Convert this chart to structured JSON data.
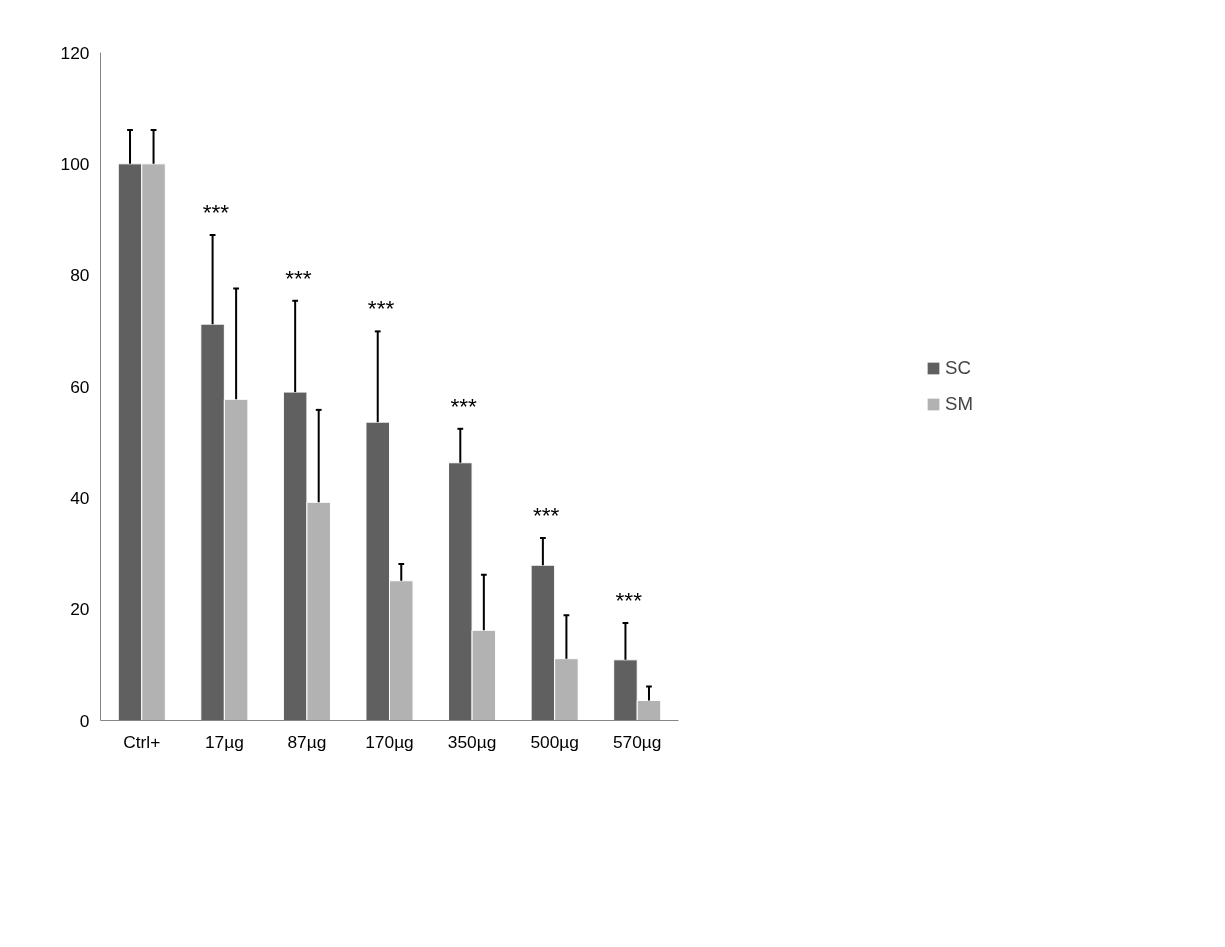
{
  "chart_data": {
    "type": "bar",
    "categories": [
      "Ctrl+",
      "17µg",
      "87µg",
      "170µg",
      "350µg",
      "500µg",
      "570µg"
    ],
    "series": [
      {
        "name": "SC",
        "color": "#606060",
        "values": [
          100,
          71.2,
          59,
          53.6,
          46.3,
          27.9,
          10.9
        ],
        "errors": [
          [
            100,
            106.1
          ],
          [
            71.2,
            87.2
          ],
          [
            59,
            75.4
          ],
          [
            53.6,
            69.9
          ],
          [
            46.3,
            52.4
          ],
          [
            27.9,
            32.8
          ],
          [
            10.9,
            17.5
          ]
        ]
      },
      {
        "name": "SM",
        "color": "#b2b2b2",
        "values": [
          100,
          57.7,
          39.2,
          25.1,
          16.2,
          11.1,
          3.6
        ],
        "errors": [
          [
            100,
            106.1
          ],
          [
            57.7,
            77.6
          ],
          [
            39.2,
            55.8
          ],
          [
            25.1,
            28.1
          ],
          [
            16.2,
            26.2
          ],
          [
            11.1,
            18.9
          ],
          [
            3.6,
            6.1
          ]
        ]
      }
    ],
    "ylim": [
      0,
      120
    ],
    "yticks": [
      0,
      20,
      40,
      60,
      80,
      100,
      120
    ],
    "annotations": [
      "***",
      "***",
      "***",
      "***",
      "***",
      "***"
    ],
    "grid": false,
    "legend": "right"
  }
}
